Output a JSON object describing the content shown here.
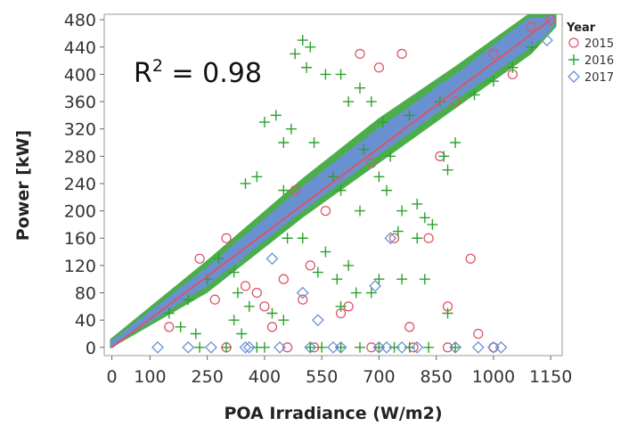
{
  "chart_data": {
    "type": "scatter",
    "xlabel": "POA Irradiance (W/m2)",
    "ylabel": "Power [kW]",
    "xlim": [
      -20,
      1180
    ],
    "ylim": [
      -12,
      488
    ],
    "x_ticks": [
      0,
      100,
      250,
      400,
      550,
      700,
      850,
      1000,
      1150
    ],
    "y_ticks": [
      0,
      40,
      80,
      120,
      160,
      200,
      240,
      280,
      320,
      360,
      400,
      440,
      480
    ],
    "grid": false,
    "legend_position": "top-right",
    "legend_title": "Year",
    "annotation": {
      "text": "R",
      "superscript": "2",
      "value_text": " = 0.98"
    },
    "fit_line": {
      "x": [
        0,
        1150
      ],
      "y": [
        0,
        480
      ],
      "color": "#d9556a"
    },
    "series": [
      {
        "name": "2015",
        "marker": "circle",
        "color": "#e0556a",
        "points": [
          [
            230,
            130
          ],
          [
            300,
            160
          ],
          [
            350,
            90
          ],
          [
            380,
            80
          ],
          [
            400,
            60
          ],
          [
            420,
            30
          ],
          [
            450,
            100
          ],
          [
            480,
            230
          ],
          [
            520,
            120
          ],
          [
            560,
            200
          ],
          [
            600,
            50
          ],
          [
            620,
            60
          ],
          [
            650,
            430
          ],
          [
            680,
            270
          ],
          [
            700,
            410
          ],
          [
            740,
            160
          ],
          [
            780,
            30
          ],
          [
            830,
            160
          ],
          [
            860,
            280
          ],
          [
            880,
            60
          ],
          [
            940,
            130
          ],
          [
            960,
            20
          ],
          [
            1000,
            430
          ],
          [
            1050,
            400
          ],
          [
            1100,
            470
          ],
          [
            1150,
            480
          ],
          [
            300,
            0
          ],
          [
            460,
            0
          ],
          [
            530,
            0
          ],
          [
            680,
            0
          ],
          [
            790,
            0
          ],
          [
            880,
            0
          ],
          [
            1000,
            0
          ],
          [
            150,
            30
          ],
          [
            270,
            70
          ],
          [
            500,
            70
          ],
          [
            760,
            430
          ],
          [
            900,
            360
          ]
        ]
      },
      {
        "name": "2016",
        "marker": "plus",
        "color": "#2ca02c",
        "points": [
          [
            480,
            430
          ],
          [
            500,
            450
          ],
          [
            510,
            410
          ],
          [
            520,
            440
          ],
          [
            600,
            400
          ],
          [
            620,
            360
          ],
          [
            650,
            380
          ],
          [
            680,
            360
          ],
          [
            560,
            400
          ],
          [
            400,
            330
          ],
          [
            430,
            340
          ],
          [
            350,
            240
          ],
          [
            380,
            250
          ],
          [
            450,
            300
          ],
          [
            470,
            320
          ],
          [
            580,
            250
          ],
          [
            600,
            230
          ],
          [
            650,
            200
          ],
          [
            700,
            250
          ],
          [
            720,
            230
          ],
          [
            750,
            170
          ],
          [
            760,
            200
          ],
          [
            800,
            210
          ],
          [
            820,
            100
          ],
          [
            840,
            180
          ],
          [
            870,
            280
          ],
          [
            250,
            100
          ],
          [
            280,
            130
          ],
          [
            320,
            40
          ],
          [
            340,
            20
          ],
          [
            360,
            60
          ],
          [
            420,
            50
          ],
          [
            450,
            40
          ],
          [
            460,
            160
          ],
          [
            500,
            160
          ],
          [
            540,
            110
          ],
          [
            560,
            140
          ],
          [
            600,
            60
          ],
          [
            640,
            80
          ],
          [
            680,
            80
          ],
          [
            700,
            100
          ],
          [
            760,
            100
          ],
          [
            800,
            160
          ],
          [
            820,
            190
          ],
          [
            880,
            260
          ],
          [
            900,
            300
          ],
          [
            180,
            30
          ],
          [
            220,
            20
          ],
          [
            230,
            0
          ],
          [
            300,
            0
          ],
          [
            380,
            0
          ],
          [
            400,
            0
          ],
          [
            520,
            0
          ],
          [
            550,
            0
          ],
          [
            600,
            0
          ],
          [
            650,
            0
          ],
          [
            700,
            0
          ],
          [
            740,
            0
          ],
          [
            780,
            0
          ],
          [
            830,
            0
          ],
          [
            900,
            0
          ],
          [
            200,
            70
          ],
          [
            150,
            50
          ],
          [
            320,
            110
          ],
          [
            330,
            80
          ],
          [
            450,
            230
          ],
          [
            530,
            300
          ],
          [
            710,
            330
          ],
          [
            780,
            340
          ],
          [
            860,
            360
          ],
          [
            950,
            370
          ],
          [
            1000,
            390
          ],
          [
            1050,
            410
          ],
          [
            1100,
            440
          ],
          [
            660,
            290
          ],
          [
            730,
            280
          ],
          [
            620,
            120
          ],
          [
            880,
            50
          ],
          [
            590,
            100
          ]
        ]
      },
      {
        "name": "2017",
        "marker": "diamond",
        "color": "#6b8fd6",
        "points": [
          [
            120,
            0
          ],
          [
            200,
            0
          ],
          [
            260,
            0
          ],
          [
            350,
            0
          ],
          [
            360,
            0
          ],
          [
            440,
            0
          ],
          [
            520,
            0
          ],
          [
            580,
            0
          ],
          [
            600,
            0
          ],
          [
            700,
            0
          ],
          [
            720,
            0
          ],
          [
            760,
            0
          ],
          [
            800,
            0
          ],
          [
            900,
            0
          ],
          [
            960,
            0
          ],
          [
            1000,
            0
          ],
          [
            1020,
            0
          ],
          [
            730,
            160
          ],
          [
            690,
            90
          ],
          [
            540,
            40
          ],
          [
            500,
            80
          ],
          [
            420,
            130
          ],
          [
            330,
            130
          ],
          [
            1100,
            450
          ],
          [
            1140,
            450
          ],
          [
            1000,
            420
          ],
          [
            1050,
            440
          ],
          [
            860,
            380
          ]
        ]
      }
    ]
  }
}
